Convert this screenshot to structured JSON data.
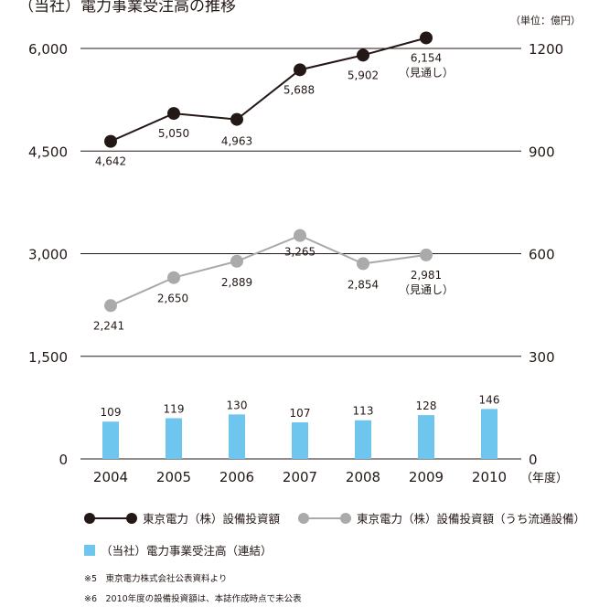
{
  "title": "（当社）電力事業受注高の推移",
  "unit": "（単位：億円）",
  "colors": {
    "black": "#231815",
    "gray": "#aaaaaa",
    "blue": "#6ec6ef"
  },
  "chart_data": {
    "type": "bar+line",
    "categories": [
      "2004",
      "2005",
      "2006",
      "2007",
      "2008",
      "2009",
      "2010"
    ],
    "x_unit_label": "（年度）",
    "left_axis": {
      "ticks": [
        "0",
        "1,500",
        "3,000",
        "4,500",
        "6,000"
      ],
      "values": [
        0,
        1500,
        3000,
        4500,
        6000
      ],
      "range": [
        0,
        6000
      ]
    },
    "right_axis": {
      "ticks": [
        "0",
        "300",
        "600",
        "900",
        "1200"
      ],
      "values": [
        0,
        300,
        600,
        900,
        1200
      ],
      "range": [
        0,
        1200
      ]
    },
    "series": [
      {
        "name": "東京電力（株）設備投資額",
        "type": "line",
        "axis": "left",
        "color": "#231815",
        "x": [
          "2004",
          "2005",
          "2006",
          "2007",
          "2008",
          "2009"
        ],
        "values": [
          4642,
          5050,
          4963,
          5688,
          5902,
          6154
        ],
        "labels": [
          "4,642",
          "5,050",
          "4,963",
          "5,688",
          "5,902",
          "6,154"
        ],
        "note_last": "（見通し）"
      },
      {
        "name": "東京電力（株）設備投資額（うち流通設備）",
        "type": "line",
        "axis": "left",
        "color": "#aaaaaa",
        "x": [
          "2004",
          "2005",
          "2006",
          "2007",
          "2008",
          "2009"
        ],
        "values": [
          2241,
          2650,
          2889,
          3265,
          2854,
          2981
        ],
        "labels": [
          "2,241",
          "2,650",
          "2,889",
          "3,265",
          "2,854",
          "2,981"
        ],
        "note_last": "（見通し）"
      },
      {
        "name": "（当社）電力事業受注高（連結）",
        "type": "bar",
        "axis": "right",
        "color": "#6ec6ef",
        "x": [
          "2004",
          "2005",
          "2006",
          "2007",
          "2008",
          "2009",
          "2010"
        ],
        "values": [
          109,
          119,
          130,
          107,
          113,
          128,
          146
        ],
        "labels": [
          "109",
          "119",
          "130",
          "107",
          "113",
          "128",
          "146"
        ]
      }
    ]
  },
  "notes": [
    "※5　東京電力株式会社公表資料より",
    "※6　2010年度の設備投資額は、本誌作成時点で未公表"
  ]
}
